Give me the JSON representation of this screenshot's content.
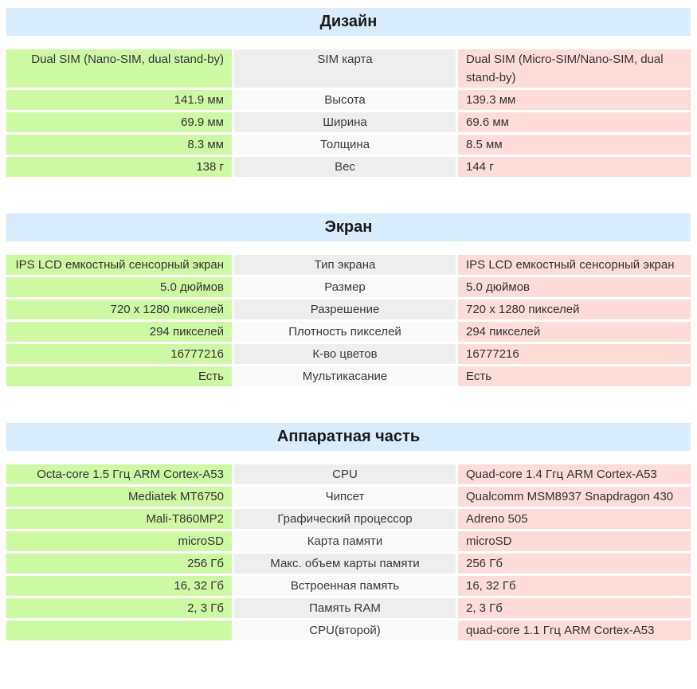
{
  "colors": {
    "section_header_bg": "#d9ecfb",
    "left_device_bg": "#cdf9a4",
    "right_device_bg": "#fedcd9",
    "label_row_odd_bg": "#eeeeee",
    "label_row_even_bg": "#fafafa",
    "text": "#333333"
  },
  "sections": [
    {
      "title": "Дизайн",
      "rows": [
        {
          "left": "Dual SIM (Nano-SIM, dual stand-by)",
          "label": "SIM карта",
          "right": "Dual SIM (Micro-SIM/Nano-SIM, dual stand-by)"
        },
        {
          "left": "141.9 мм",
          "label": "Высота",
          "right": "139.3 мм"
        },
        {
          "left": "69.9 мм",
          "label": "Ширина",
          "right": "69.6 мм"
        },
        {
          "left": "8.3 мм",
          "label": "Толщина",
          "right": "8.5 мм"
        },
        {
          "left": "138 г",
          "label": "Вес",
          "right": "144 г"
        }
      ]
    },
    {
      "title": "Экран",
      "rows": [
        {
          "left": "IPS LCD емкостный сенсорный экран",
          "label": "Тип экрана",
          "right": "IPS LCD емкостный сенсорный экран"
        },
        {
          "left": "5.0 дюймов",
          "label": "Размер",
          "right": "5.0 дюймов"
        },
        {
          "left": "720 x 1280 пикселей",
          "label": "Разрешение",
          "right": "720 x 1280 пикселей"
        },
        {
          "left": "294 пикселей",
          "label": "Плотность пикселей",
          "right": "294 пикселей"
        },
        {
          "left": "16777216",
          "label": "К-во цветов",
          "right": "16777216"
        },
        {
          "left": "Есть",
          "label": "Мультикасание",
          "right": "Есть"
        }
      ]
    },
    {
      "title": "Аппаратная часть",
      "rows": [
        {
          "left": "Octa-core 1.5 Ггц ARM Cortex-A53",
          "label": "CPU",
          "right": "Quad-core 1.4 Ггц ARM Cortex-A53"
        },
        {
          "left": "Mediatek MT6750",
          "label": "Чипсет",
          "right": "Qualcomm MSM8937 Snapdragon 430"
        },
        {
          "left": "Mali-T860MP2",
          "label": "Графический процессор",
          "right": "Adreno 505"
        },
        {
          "left": "microSD",
          "label": "Карта памяти",
          "right": "microSD"
        },
        {
          "left": "256 Гб",
          "label": "Макс. объем карты памяти",
          "right": "256 Гб"
        },
        {
          "left": "16, 32 Гб",
          "label": "Встроенная память",
          "right": "16, 32 Гб"
        },
        {
          "left": "2, 3 Гб",
          "label": "Память RAM",
          "right": "2, 3 Гб"
        },
        {
          "left": "",
          "label": "CPU(второй)",
          "right": "quad-core 1.1 Ггц ARM Cortex-A53"
        }
      ]
    }
  ]
}
